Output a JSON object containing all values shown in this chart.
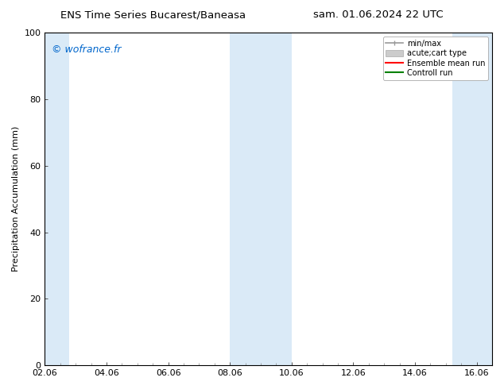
{
  "title_left": "ENS Time Series Bucarest/Baneasa",
  "title_right": "sam. 01.06.2024 22 UTC",
  "ylabel": "Precipitation Accumulation (mm)",
  "watermark": "© wofrance.fr",
  "watermark_color": "#0066cc",
  "ylim": [
    0,
    100
  ],
  "xlim_start": 0,
  "xlim_end": 14.5,
  "xtick_labels": [
    "02.06",
    "04.06",
    "06.06",
    "08.06",
    "10.06",
    "12.06",
    "14.06",
    "16.06"
  ],
  "xtick_positions": [
    0,
    2,
    4,
    6,
    8,
    10,
    12,
    14
  ],
  "ytick_labels": [
    "0",
    "20",
    "40",
    "60",
    "80",
    "100"
  ],
  "ytick_positions": [
    0,
    20,
    40,
    60,
    80,
    100
  ],
  "shaded_regions": [
    {
      "xmin": -0.5,
      "xmax": 0.8,
      "color": "#daeaf7"
    },
    {
      "xmin": 6.0,
      "xmax": 8.0,
      "color": "#daeaf7"
    },
    {
      "xmin": 13.2,
      "xmax": 15.0,
      "color": "#daeaf7"
    }
  ],
  "legend_entries": [
    {
      "label": "min/max",
      "color": "#999999",
      "lw": 1.2,
      "ls": "-",
      "type": "minmax"
    },
    {
      "label": "acute;cart type",
      "color": "#cccccc",
      "lw": 5,
      "ls": "-",
      "type": "band"
    },
    {
      "label": "Ensemble mean run",
      "color": "#ff0000",
      "lw": 1.5,
      "ls": "-",
      "type": "line"
    },
    {
      "label": "Controll run",
      "color": "#008000",
      "lw": 1.5,
      "ls": "-",
      "type": "line"
    }
  ],
  "bg_color": "#ffffff",
  "plot_bg_color": "#ffffff",
  "spine_color": "#000000",
  "tick_label_fontsize": 8,
  "axis_label_fontsize": 8,
  "title_fontsize": 9.5,
  "watermark_fontsize": 9
}
